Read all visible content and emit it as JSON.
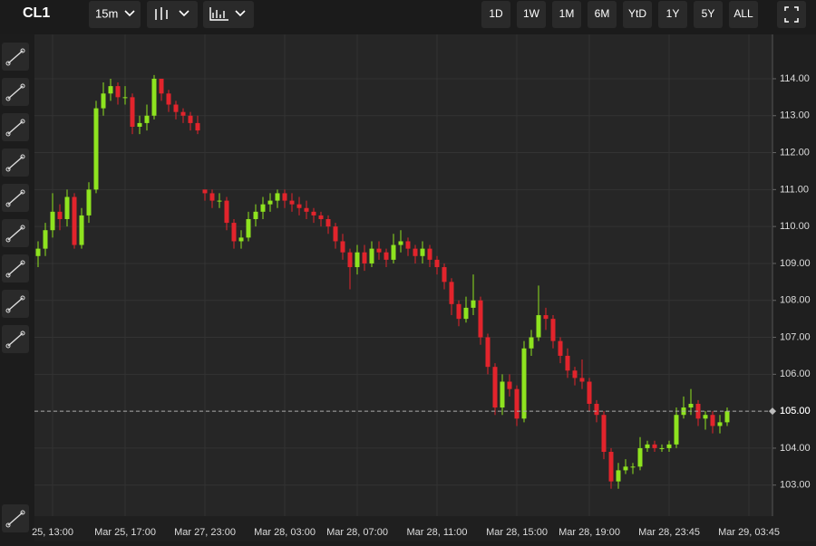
{
  "toolbar": {
    "symbol": "CL1",
    "interval": "15m",
    "ranges": [
      "1D",
      "1W",
      "1M",
      "6M",
      "YtD",
      "1Y",
      "5Y",
      "ALL"
    ]
  },
  "chart_data": {
    "type": "candlestick",
    "up_color": "#8ee31f",
    "down_color": "#e2242c",
    "ylim": [
      102.16,
      115.2
    ],
    "yticks": [
      {
        "value": 103,
        "label": "103.00"
      },
      {
        "value": 104,
        "label": "104.00"
      },
      {
        "value": 105,
        "label": "105.00"
      },
      {
        "value": 106,
        "label": "106.00"
      },
      {
        "value": 107,
        "label": "107.00"
      },
      {
        "value": 108,
        "label": "108.00"
      },
      {
        "value": 109,
        "label": "109.00"
      },
      {
        "value": 110,
        "label": "110.00"
      },
      {
        "value": 111,
        "label": "111.00"
      },
      {
        "value": 112,
        "label": "112.00"
      },
      {
        "value": 113,
        "label": "113.00"
      },
      {
        "value": 114,
        "label": "114.00"
      }
    ],
    "last_price": {
      "value": 105.0,
      "label": "105.00"
    },
    "categories": [
      null,
      null,
      "25, 13:00",
      null,
      null,
      null,
      null,
      null,
      null,
      null,
      null,
      null,
      "Mar 25, 17:00",
      null,
      null,
      null,
      null,
      null,
      null,
      null,
      null,
      null,
      null,
      "Mar 27, 23:00",
      null,
      null,
      null,
      null,
      null,
      null,
      null,
      null,
      null,
      null,
      "Mar 28, 03:00",
      null,
      null,
      null,
      null,
      null,
      null,
      null,
      null,
      null,
      "Mar 28, 07:00",
      null,
      null,
      null,
      null,
      null,
      null,
      null,
      null,
      null,
      null,
      "Mar 28, 11:00",
      null,
      null,
      null,
      null,
      null,
      null,
      null,
      null,
      null,
      null,
      "Mar 28, 15:00",
      null,
      null,
      null,
      null,
      null,
      null,
      null,
      null,
      null,
      "Mar 28, 19:00",
      null,
      null,
      null,
      null,
      null,
      null,
      null,
      null,
      null,
      null,
      "Mar 28, 23:45",
      null,
      null,
      null,
      null,
      null,
      null,
      null,
      null,
      null,
      null,
      "Mar 29, 03:45",
      null
    ],
    "ohlc": [
      [
        109.2,
        109.6,
        108.9,
        109.4
      ],
      [
        109.4,
        110.1,
        109.2,
        109.9
      ],
      [
        109.9,
        110.9,
        109.7,
        110.4
      ],
      [
        110.4,
        110.6,
        109.9,
        110.2
      ],
      [
        110.2,
        111.0,
        110.0,
        110.8
      ],
      [
        110.8,
        110.9,
        109.4,
        109.5
      ],
      [
        109.5,
        110.5,
        109.4,
        110.3
      ],
      [
        110.3,
        111.2,
        110.1,
        111.0
      ],
      [
        111.0,
        113.4,
        110.9,
        113.2
      ],
      [
        113.2,
        113.9,
        113.0,
        113.6
      ],
      [
        113.6,
        114.0,
        113.4,
        113.8
      ],
      [
        113.8,
        113.9,
        113.3,
        113.5
      ],
      [
        113.5,
        113.8,
        113.3,
        113.5
      ],
      [
        113.5,
        113.6,
        112.5,
        112.7
      ],
      [
        112.7,
        113.0,
        112.5,
        112.8
      ],
      [
        112.8,
        113.3,
        112.6,
        113.0
      ],
      [
        113.0,
        114.1,
        112.9,
        114.0
      ],
      [
        114.0,
        114.0,
        113.4,
        113.6
      ],
      [
        113.6,
        113.7,
        113.1,
        113.3
      ],
      [
        113.3,
        113.4,
        112.9,
        113.1
      ],
      [
        113.1,
        113.2,
        112.8,
        113.0
      ],
      [
        113.0,
        113.1,
        112.6,
        112.8
      ],
      [
        112.8,
        113.0,
        112.5,
        112.6
      ],
      [
        111.0,
        111.0,
        110.7,
        110.9
      ],
      [
        110.9,
        111.0,
        110.5,
        110.7
      ],
      [
        110.7,
        110.9,
        110.5,
        110.7
      ],
      [
        110.7,
        110.8,
        109.9,
        110.1
      ],
      [
        110.1,
        110.2,
        109.4,
        109.6
      ],
      [
        109.6,
        109.9,
        109.4,
        109.7
      ],
      [
        109.7,
        110.4,
        109.6,
        110.2
      ],
      [
        110.2,
        110.6,
        110.0,
        110.4
      ],
      [
        110.4,
        110.8,
        110.2,
        110.6
      ],
      [
        110.6,
        110.9,
        110.4,
        110.7
      ],
      [
        110.7,
        111.0,
        110.5,
        110.9
      ],
      [
        110.9,
        111.0,
        110.5,
        110.7
      ],
      [
        110.7,
        110.9,
        110.4,
        110.6
      ],
      [
        110.6,
        110.8,
        110.3,
        110.5
      ],
      [
        110.5,
        110.7,
        110.2,
        110.4
      ],
      [
        110.4,
        110.5,
        110.1,
        110.3
      ],
      [
        110.3,
        110.4,
        110.0,
        110.2
      ],
      [
        110.2,
        110.3,
        109.8,
        110.0
      ],
      [
        110.0,
        110.1,
        109.4,
        109.6
      ],
      [
        109.6,
        109.8,
        109.1,
        109.3
      ],
      [
        109.3,
        109.4,
        108.3,
        108.9
      ],
      [
        108.9,
        109.5,
        108.7,
        109.3
      ],
      [
        109.3,
        109.5,
        108.8,
        109.0
      ],
      [
        109.0,
        109.6,
        108.9,
        109.4
      ],
      [
        109.4,
        109.6,
        109.1,
        109.3
      ],
      [
        109.3,
        109.4,
        108.9,
        109.1
      ],
      [
        109.1,
        109.8,
        109.0,
        109.5
      ],
      [
        109.5,
        109.9,
        109.3,
        109.6
      ],
      [
        109.6,
        109.7,
        109.2,
        109.4
      ],
      [
        109.4,
        109.5,
        109.0,
        109.2
      ],
      [
        109.2,
        109.6,
        109.0,
        109.4
      ],
      [
        109.4,
        109.5,
        108.9,
        109.1
      ],
      [
        109.1,
        109.2,
        108.7,
        108.9
      ],
      [
        108.9,
        109.0,
        108.3,
        108.5
      ],
      [
        108.5,
        108.6,
        107.6,
        107.9
      ],
      [
        107.9,
        108.0,
        107.3,
        107.5
      ],
      [
        107.5,
        108.1,
        107.4,
        107.8
      ],
      [
        107.8,
        108.7,
        107.6,
        108.0
      ],
      [
        108.0,
        108.1,
        106.8,
        107.0
      ],
      [
        107.0,
        107.1,
        106.0,
        106.2
      ],
      [
        106.2,
        106.3,
        104.9,
        105.1
      ],
      [
        105.1,
        106.0,
        104.9,
        105.8
      ],
      [
        105.8,
        106.0,
        105.4,
        105.6
      ],
      [
        105.6,
        105.7,
        104.6,
        104.8
      ],
      [
        104.8,
        106.9,
        104.7,
        106.7
      ],
      [
        106.7,
        107.2,
        106.5,
        107.0
      ],
      [
        107.0,
        108.4,
        106.9,
        107.6
      ],
      [
        107.6,
        107.8,
        107.2,
        107.5
      ],
      [
        107.5,
        107.6,
        106.7,
        106.9
      ],
      [
        106.9,
        107.0,
        106.3,
        106.5
      ],
      [
        106.5,
        106.7,
        105.9,
        106.1
      ],
      [
        106.1,
        106.2,
        105.7,
        105.9
      ],
      [
        105.9,
        106.4,
        105.6,
        105.8
      ],
      [
        105.8,
        105.9,
        105.0,
        105.2
      ],
      [
        105.2,
        105.3,
        104.7,
        104.9
      ],
      [
        104.9,
        105.0,
        103.7,
        103.9
      ],
      [
        103.9,
        104.0,
        102.9,
        103.1
      ],
      [
        103.1,
        103.6,
        102.9,
        103.4
      ],
      [
        103.4,
        103.7,
        103.3,
        103.5
      ],
      [
        103.5,
        103.6,
        103.3,
        103.5
      ],
      [
        103.5,
        104.3,
        103.4,
        104.0
      ],
      [
        104.0,
        104.2,
        103.9,
        104.1
      ],
      [
        104.1,
        104.2,
        103.9,
        104.0
      ],
      [
        104.0,
        104.1,
        103.9,
        104.0
      ],
      [
        104.0,
        104.2,
        103.9,
        104.1
      ],
      [
        104.1,
        105.1,
        104.0,
        104.9
      ],
      [
        104.9,
        105.4,
        104.8,
        105.1
      ],
      [
        105.1,
        105.6,
        104.9,
        105.2
      ],
      [
        105.2,
        105.3,
        104.6,
        104.8
      ],
      [
        104.8,
        105.0,
        104.5,
        104.9
      ],
      [
        104.9,
        105.0,
        104.4,
        104.6
      ],
      [
        104.6,
        104.9,
        104.4,
        104.7
      ],
      [
        104.7,
        105.1,
        104.6,
        105.0
      ],
      null,
      null,
      null,
      null
    ]
  }
}
